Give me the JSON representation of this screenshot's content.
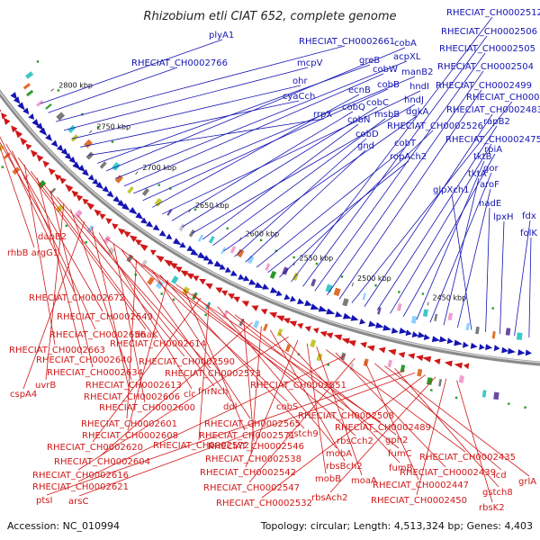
{
  "title": "Rhizobium etli CIAT 652, complete genome",
  "accession_label": "Accession: NC_010994",
  "topology_label": "Topology: circular; Length: 4,513,324 bp; Genes: 4,403",
  "ticks": [
    "2800 kbp",
    "2750 kbp",
    "2700 kbp",
    "2650 kbp",
    "2600 kbp",
    "2550 kbp",
    "2500 kbp",
    "2450 kbp"
  ],
  "colors": {
    "forward": "#1515b3",
    "reverse": "#d01818",
    "backbone": "#8a8a8a",
    "feature_green": "#2a9a2a"
  },
  "labels_forward": [
    "plyA1",
    "RHECIAT_CH0002766",
    "RHECIAT_CH0002661",
    "mcpV",
    "ohr",
    "cyaCch",
    "rrpX",
    "greB",
    "cobA",
    "acpXL",
    "cobW",
    "manB2",
    "cobB",
    "ecnB",
    "hndI",
    "cobQ",
    "cobC",
    "hndJ",
    "cobN",
    "msbB",
    "dgkA",
    "cobD",
    "gnd",
    "cobT",
    "ropAch2",
    "RHECIAT_CH0002526",
    "RHECIAT_CH0002512",
    "RHECIAT_CH0002506",
    "RHECIAT_CH0002505",
    "RHECIAT_CH0002504",
    "RHECIAT_CH0002499",
    "RHECIAT_CH0002490",
    "RHECIAT_CH0002483",
    "rapB2",
    "RHECIAT_CH0002475",
    "rpiA",
    "tktB",
    "gor",
    "tktA",
    "aroF",
    "glpXch1",
    "nadE",
    "lpxH",
    "fdx",
    "folK"
  ],
  "labels_reverse": [
    "dapB2",
    "rhbB argG1",
    "RHECIAT_CH0002672",
    "RHECIAT_CH0002649",
    "RHECIAT_CH0002656",
    "dhaK",
    "RHECIAT_CH0002663",
    "RHECIAT_CH0002614",
    "RHECIAT_CH0002640",
    "RHECIAT_CH0002590",
    "RHECIAT_CH0002634",
    "RHECIAT_CH0002573",
    "uvrB",
    "RHECIAT_CH0002613",
    "fnrNch",
    "cspA4",
    "RHECIAT_CH0002606",
    "clc",
    "RHECIAT_CH0002551",
    "RHECIAT_CH0002600",
    "ddl",
    "cobS",
    "RHECIAT_CH0002601",
    "RHECIAT_CH0002508",
    "RHECIAT_CH0002565",
    "gstch9",
    "RHECIAT_CH0002608",
    "RHECIAT_CH0002489",
    "RHECIAT_CH0002571",
    "rbsCch2",
    "RHECIAT_CH0002620",
    "RHECIAT_CH0002572",
    "mobA",
    "fumC",
    "gph2",
    "RHECIAT_CH0002546",
    "RHECIAT_CH0002604",
    "RHECIAT_CH0002538",
    "rbsBch2",
    "fumB",
    "RHECIAT_CH0002616",
    "RHECIAT_CH0002542",
    "mobB",
    "moaA",
    "RHECIAT_CH0002435",
    "RHECIAT_CH0002439",
    "RHECIAT_CH0002621",
    "RHECIAT_CH0002547",
    "RHECIAT_CH0002447",
    "icd",
    "grlA",
    "gstch8",
    "ptsI",
    "arsC",
    "RHECIAT_CH0002532",
    "rbsAch2",
    "RHECIAT_CH0002450",
    "rbsK2"
  ]
}
